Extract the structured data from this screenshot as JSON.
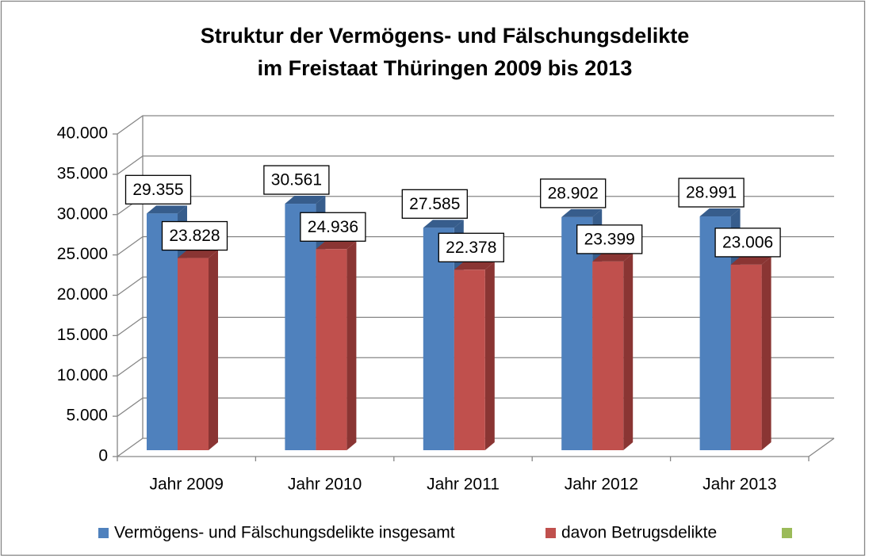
{
  "chart_data": {
    "type": "bar3d",
    "title": [
      "Struktur der Vermögens- und Fälschungsdelikte",
      "im Freistaat Thüringen 2009 bis 2013"
    ],
    "categories": [
      "Jahr 2009",
      "Jahr 2010",
      "Jahr 2011",
      "Jahr 2012",
      "Jahr 2013"
    ],
    "series": [
      {
        "name": "Vermögens- und Fälschungsdelikte insgesamt",
        "color": "#4f81bd",
        "side": "#375d8c",
        "values": [
          29355,
          30561,
          27585,
          28902,
          28991
        ],
        "value_labels": [
          "29.355",
          "30.561",
          "27.585",
          "28.902",
          "28.991"
        ]
      },
      {
        "name": "davon Betrugsdelikte",
        "color": "#c0504d",
        "side": "#8a3533",
        "values": [
          23828,
          24936,
          22378,
          23399,
          23006
        ],
        "value_labels": [
          "23.828",
          "24.936",
          "22.378",
          "23.399",
          "23.006"
        ]
      },
      {
        "name": null,
        "color": "#9bbb59",
        "side": "#71893f",
        "values": [
          null,
          null,
          null,
          null,
          null
        ]
      }
    ],
    "ylim": [
      0,
      40000
    ],
    "yticks": [
      0,
      {
        "value": 5000,
        "label": "5.000"
      },
      {
        "value": 10000,
        "label": "10.000"
      },
      {
        "value": 15000,
        "label": "15.000"
      },
      {
        "value": 20000,
        "label": "20.000"
      },
      {
        "value": 25000,
        "label": "25.000"
      },
      {
        "value": 30000,
        "label": "30.000"
      },
      {
        "value": 35000,
        "label": "35.000"
      },
      {
        "value": 40000,
        "label": "40.000"
      }
    ],
    "grid": true,
    "legend": "bottom"
  }
}
